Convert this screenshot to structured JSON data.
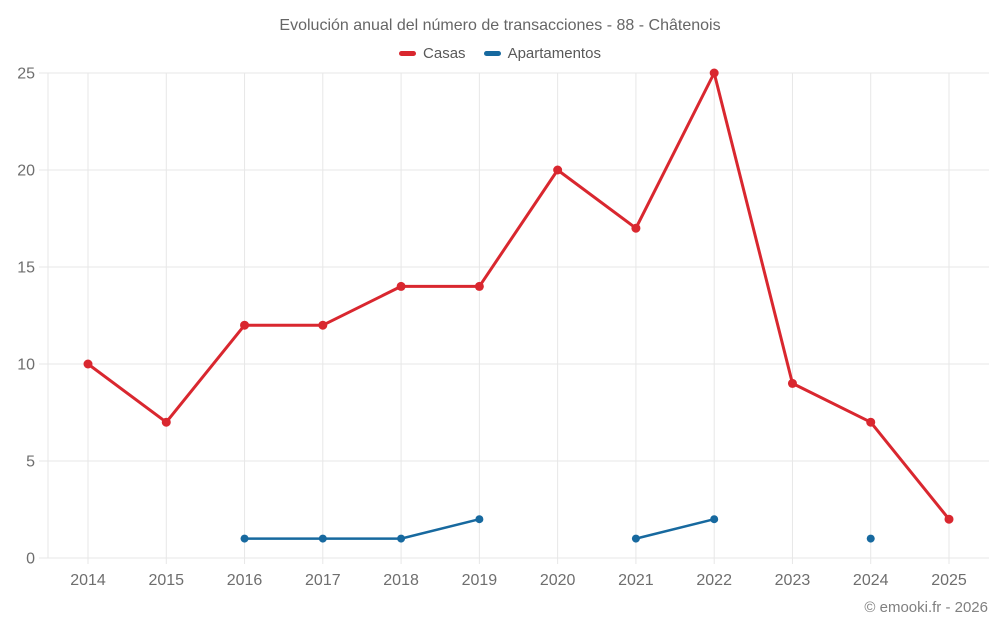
{
  "chart_data": {
    "type": "line",
    "title": "Evolución anual del número de transacciones - 88 - Châtenois",
    "x": [
      2014,
      2015,
      2016,
      2017,
      2018,
      2019,
      2020,
      2021,
      2022,
      2023,
      2024,
      2025
    ],
    "series": [
      {
        "name": "Casas",
        "color": "#d9272f",
        "values": [
          10,
          7,
          12,
          12,
          14,
          14,
          20,
          17,
          25,
          9,
          7,
          2
        ]
      },
      {
        "name": "Apartamentos",
        "color": "#17699f",
        "values": [
          null,
          null,
          1,
          1,
          1,
          2,
          null,
          1,
          2,
          null,
          1,
          null
        ]
      }
    ],
    "xlabel": "",
    "ylabel": "",
    "ylim": [
      0,
      25
    ],
    "yticks": [
      0,
      5,
      10,
      15,
      20,
      25
    ],
    "grid": true,
    "legend_position": "top"
  },
  "footer": {
    "copyright": "© emooki.fr - 2026"
  },
  "style": {
    "grid_color": "#e7e7e7",
    "axis_text_color": "#6e6e6e",
    "title_color": "#666666",
    "background": "#ffffff"
  }
}
